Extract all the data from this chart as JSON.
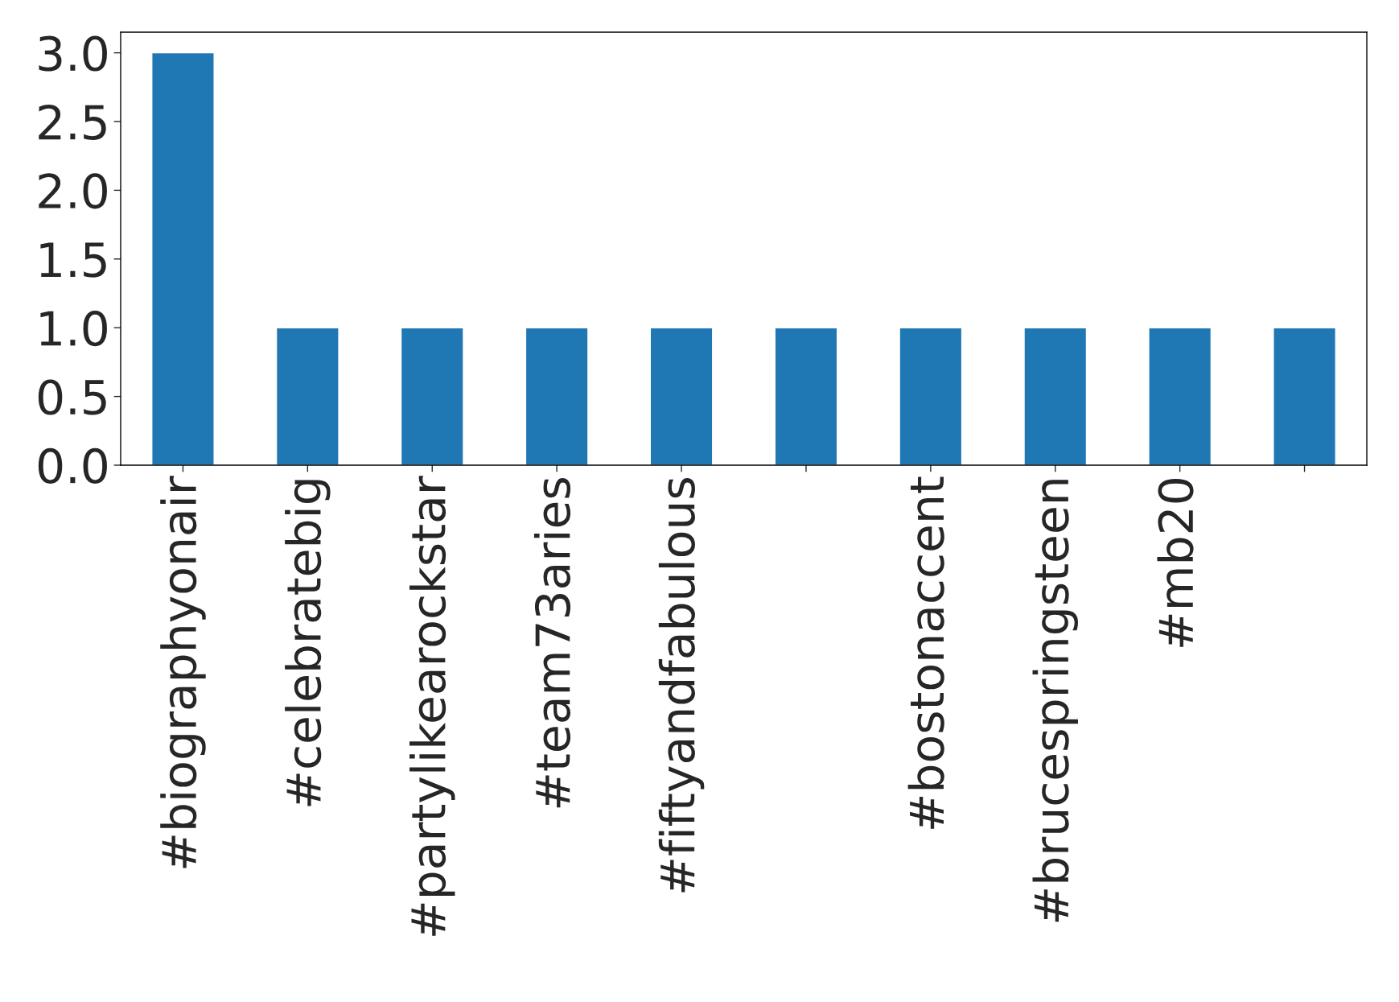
{
  "chart_data": {
    "type": "bar",
    "categories": [
      "#biographyonair",
      "#celebratebig",
      "#partylikearockstar",
      "#team73aries",
      "#fiftyandfabulous",
      null,
      "#bostonaccent",
      "#brucespringsteen",
      "#mb20",
      null
    ],
    "values": [
      3,
      1,
      1,
      1,
      1,
      1,
      1,
      1,
      1,
      1
    ],
    "color": "#1f77b4",
    "ylim": [
      0,
      3.15
    ],
    "yticks": [
      {
        "value": 0,
        "label": "0.0"
      },
      {
        "value": 0.5,
        "label": "0.5"
      },
      {
        "value": 1,
        "label": "1.0"
      },
      {
        "value": 1.5,
        "label": "1.5"
      },
      {
        "value": 2,
        "label": "2.0"
      },
      {
        "value": 2.5,
        "label": "2.5"
      },
      {
        "value": 3,
        "label": "3.0"
      }
    ],
    "grid": false,
    "legend": false
  }
}
